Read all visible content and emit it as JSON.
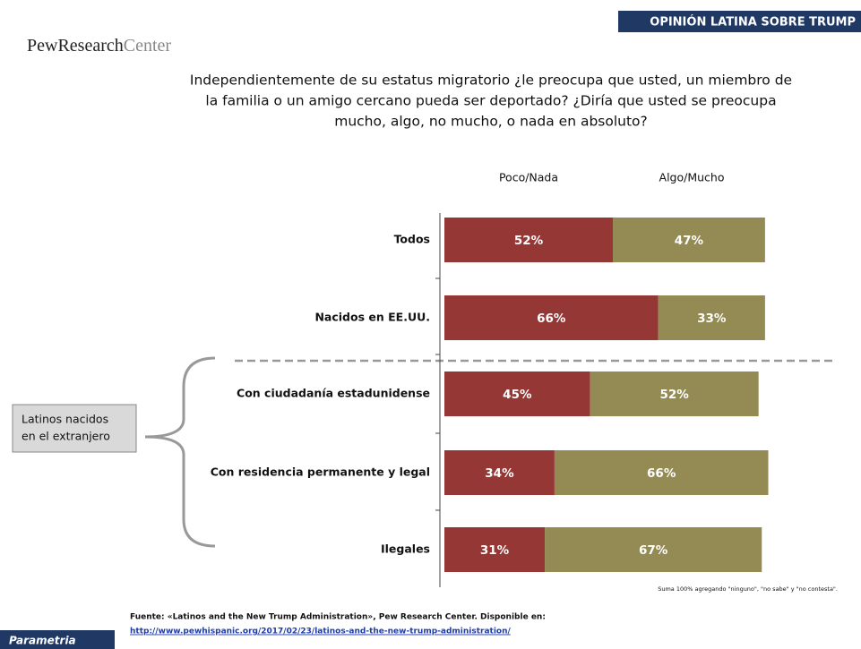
{
  "header": "OPINIÓN LATINA SOBRE TRUMP",
  "logo": {
    "first": "PewResearch",
    "second": "Center"
  },
  "brand": "Parametria",
  "chart_data": {
    "type": "bar",
    "orientation": "horizontal",
    "stacked": true,
    "title": [
      "Independientemente de su estatus migratorio ¿le preocupa que usted, un miembro de",
      "la familia o un amigo cercano pueda ser deportado? ¿Diría que usted se preocupa",
      "mucho, algo, no mucho, o nada en absoluto?"
    ],
    "categories": [
      "Todos",
      "Nacidos en EE.UU.",
      "Con ciudadanía estadunidense",
      "Con residencia permanente y legal",
      "Ilegales"
    ],
    "series": [
      {
        "name": "Poco/Nada",
        "color": "#953735",
        "values": [
          52,
          66,
          45,
          34,
          31
        ],
        "value_labels": [
          "52%",
          "66%",
          "45%",
          "34%",
          "31%"
        ]
      },
      {
        "name": "Algo/Mucho",
        "color": "#948a54",
        "values": [
          47,
          33,
          52,
          66,
          67
        ],
        "value_labels": [
          "47%",
          "33%",
          "52%",
          "66%",
          "67%"
        ]
      }
    ],
    "annotation": [
      "Latinos nacidos",
      "en el extranjero"
    ],
    "note": "Suma 100% agregando \"ninguno\", \"no sabe\" y \"no contesta\".",
    "source": "Fuente: «Latinos and the New Trump Administration», Pew Research Center. Disponible en:",
    "source_url": "http://www.pewhispanic.org/2017/02/23/latinos-and-the-new-trump-administration/"
  }
}
